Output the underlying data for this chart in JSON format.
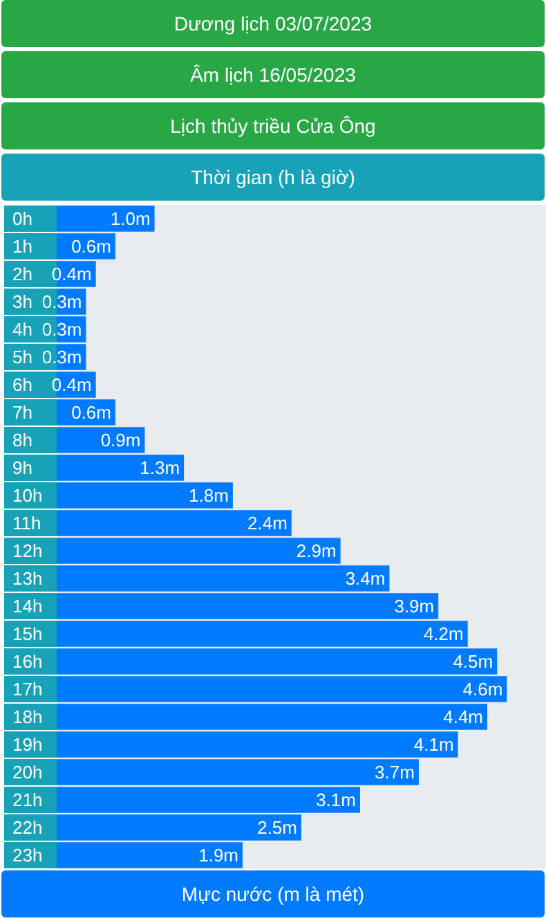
{
  "chart_data": {
    "type": "bar",
    "orientation": "horizontal",
    "title": "Dương lịch 03/07/2023",
    "subtitle": "Âm lịch 16/05/2023",
    "annotations": [
      "Lịch thủy triều Cửa Ông"
    ],
    "ylabel": "Thời gian (h là giờ)",
    "xlabel": "Mực nước (m là mét)",
    "categories": [
      "0h",
      "1h",
      "2h",
      "3h",
      "4h",
      "5h",
      "6h",
      "7h",
      "8h",
      "9h",
      "10h",
      "11h",
      "12h",
      "13h",
      "14h",
      "15h",
      "16h",
      "17h",
      "18h",
      "19h",
      "20h",
      "21h",
      "22h",
      "23h"
    ],
    "values": [
      1.0,
      0.6,
      0.4,
      0.3,
      0.3,
      0.3,
      0.4,
      0.6,
      0.9,
      1.3,
      1.8,
      2.4,
      2.9,
      3.4,
      3.9,
      4.2,
      4.5,
      4.6,
      4.4,
      4.1,
      3.7,
      3.1,
      2.5,
      1.9
    ],
    "value_labels": [
      "1.0m",
      "0.6m",
      "0.4m",
      "0.3m",
      "0.3m",
      "0.3m",
      "0.4m",
      "0.6m",
      "0.9m",
      "1.3m",
      "1.8m",
      "2.4m",
      "2.9m",
      "3.4m",
      "3.9m",
      "4.2m",
      "4.5m",
      "4.6m",
      "4.4m",
      "4.1m",
      "3.7m",
      "3.1m",
      "2.5m",
      "1.9m"
    ],
    "color": "#007bff",
    "grid": false
  }
}
